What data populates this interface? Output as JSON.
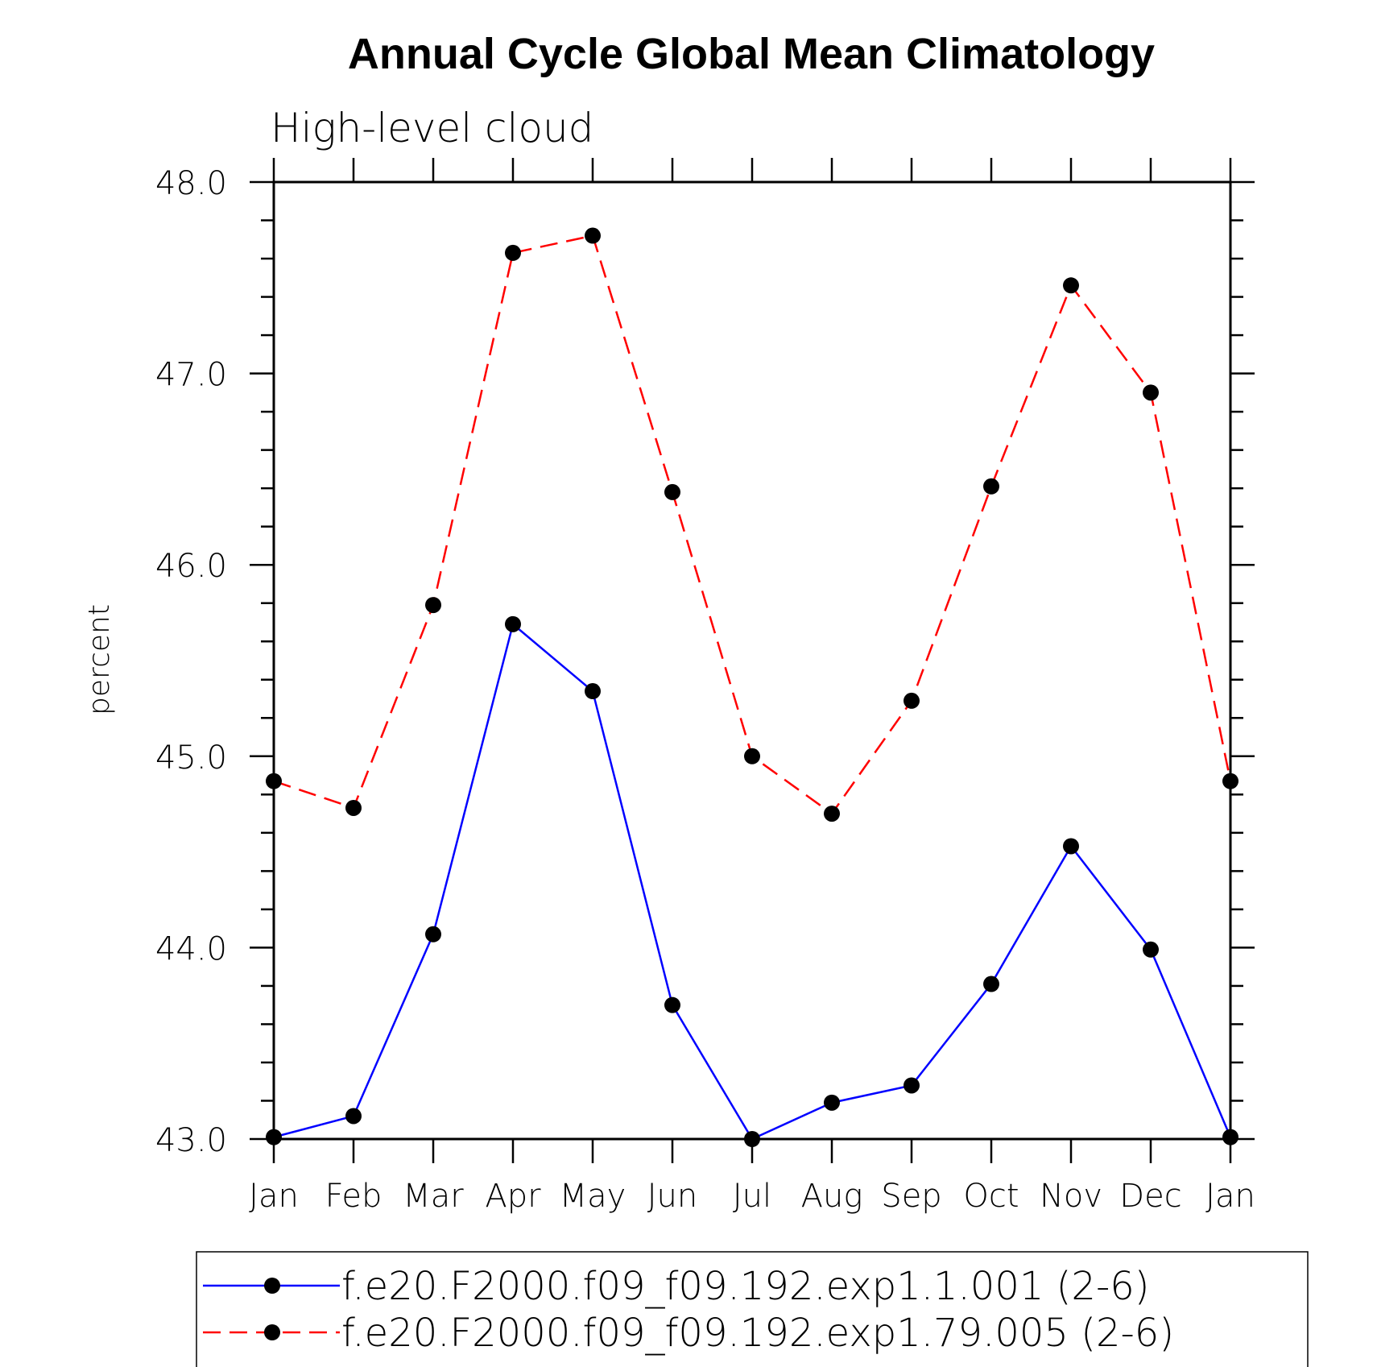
{
  "chart_data": {
    "type": "line",
    "title": "Annual Cycle Global Mean Climatology",
    "subtitle": "High-level cloud",
    "xlabel": "",
    "ylabel": "percent",
    "categories": [
      "Jan",
      "Feb",
      "Mar",
      "Apr",
      "May",
      "Jun",
      "Jul",
      "Aug",
      "Sep",
      "Oct",
      "Nov",
      "Dec",
      "Jan"
    ],
    "ylim": [
      43.0,
      48.0
    ],
    "yticks": [
      "43.0",
      "44.0",
      "45.0",
      "46.0",
      "47.0",
      "48.0"
    ],
    "grid": false,
    "legend_position": "bottom",
    "series": [
      {
        "name": "f.e20.F2000.f09_f09.192.exp1.1.001 (2-6)",
        "color": "#0000ff",
        "dash": "solid",
        "values": [
          43.01,
          43.12,
          44.07,
          45.69,
          45.34,
          43.7,
          43.0,
          43.19,
          43.28,
          43.81,
          44.53,
          43.99,
          43.01
        ]
      },
      {
        "name": "f.e20.F2000.f09_f09.192.exp1.79.005 (2-6)",
        "color": "#ff0000",
        "dash": "dashed",
        "values": [
          44.87,
          44.73,
          45.79,
          47.63,
          47.72,
          46.38,
          45.0,
          44.7,
          45.29,
          46.41,
          47.46,
          46.9,
          44.87
        ]
      }
    ]
  }
}
